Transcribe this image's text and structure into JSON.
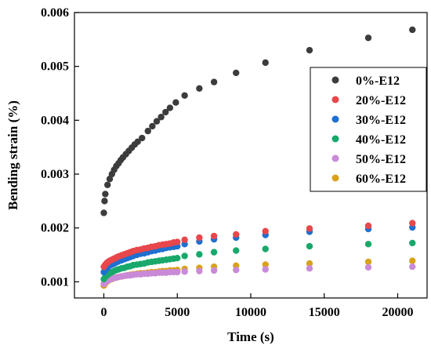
{
  "chart_data": {
    "type": "scatter",
    "xlabel": "Time (s)",
    "ylabel": "Bending strain (%)",
    "xlim": [
      -2000,
      22000
    ],
    "ylim": [
      0.0007,
      0.006
    ],
    "x_ticks": [
      0,
      5000,
      10000,
      15000,
      20000
    ],
    "y_ticks": [
      0.001,
      0.002,
      0.003,
      0.004,
      0.005,
      0.006
    ],
    "x_tick_labels": [
      "0",
      "5000",
      "10000",
      "15000",
      "20000"
    ],
    "y_tick_labels": [
      "0.001",
      "0.002",
      "0.003",
      "0.004",
      "0.005",
      "0.006"
    ],
    "grid": false,
    "legend_position": "right",
    "series": [
      {
        "name": "0%-E12",
        "color": "#3c3c3c",
        "x": [
          0,
          50,
          100,
          250,
          400,
          550,
          700,
          850,
          1000,
          1150,
          1300,
          1500,
          1700,
          1900,
          2100,
          2300,
          2600,
          3000,
          3300,
          3600,
          3900,
          4200,
          4500,
          4900,
          5500,
          6500,
          7500,
          9000,
          11000,
          14000,
          18000,
          21000
        ],
        "y": [
          0.00228,
          0.0025,
          0.00263,
          0.0028,
          0.00291,
          0.003,
          0.00308,
          0.00315,
          0.0032,
          0.00326,
          0.00331,
          0.00337,
          0.00343,
          0.00349,
          0.00355,
          0.0036,
          0.00367,
          0.0038,
          0.00389,
          0.00398,
          0.00406,
          0.00415,
          0.00423,
          0.00433,
          0.00446,
          0.00459,
          0.00471,
          0.00488,
          0.00507,
          0.0053,
          0.00553,
          0.00568
        ]
      },
      {
        "name": "20%-E12",
        "color": "#e8474b",
        "x": [
          0,
          100,
          200,
          300,
          400,
          550,
          700,
          850,
          1000,
          1200,
          1400,
          1600,
          1800,
          2000,
          2250,
          2500,
          2750,
          3000,
          3250,
          3500,
          3750,
          4000,
          4250,
          4500,
          4750,
          5000,
          5500,
          6500,
          7500,
          9000,
          11000,
          14000,
          18000,
          21000
        ],
        "y": [
          0.00128,
          0.00132,
          0.00135,
          0.00137,
          0.00139,
          0.00141,
          0.00143,
          0.00145,
          0.00147,
          0.00149,
          0.00151,
          0.00153,
          0.00155,
          0.00157,
          0.00159,
          0.0016,
          0.00162,
          0.00163,
          0.00165,
          0.00166,
          0.00168,
          0.00169,
          0.0017,
          0.00171,
          0.00173,
          0.00174,
          0.00178,
          0.00182,
          0.00185,
          0.00188,
          0.00194,
          0.00199,
          0.00204,
          0.00209
        ]
      },
      {
        "name": "30%-E12",
        "color": "#1f6fd0",
        "x": [
          0,
          100,
          200,
          300,
          400,
          550,
          700,
          850,
          1000,
          1200,
          1400,
          1600,
          1800,
          2000,
          2250,
          2500,
          2750,
          3000,
          3250,
          3500,
          3750,
          4000,
          4250,
          4500,
          4750,
          5000,
          5500,
          6500,
          7500,
          9000,
          11000,
          14000,
          18000,
          21000
        ],
        "y": [
          0.00118,
          0.00122,
          0.00125,
          0.00128,
          0.0013,
          0.00132,
          0.00134,
          0.00136,
          0.00138,
          0.0014,
          0.00142,
          0.00144,
          0.00146,
          0.00148,
          0.0015,
          0.00152,
          0.00153,
          0.00155,
          0.00157,
          0.00158,
          0.0016,
          0.00161,
          0.00163,
          0.00164,
          0.00165,
          0.00166,
          0.0017,
          0.00175,
          0.00179,
          0.00182,
          0.00187,
          0.00193,
          0.00198,
          0.00201
        ]
      },
      {
        "name": "40%-E12",
        "color": "#19a86b",
        "x": [
          0,
          100,
          200,
          300,
          400,
          550,
          700,
          850,
          1000,
          1200,
          1400,
          1600,
          1800,
          2000,
          2250,
          2500,
          2750,
          3000,
          3250,
          3500,
          3750,
          4000,
          4250,
          4500,
          4750,
          5000,
          5500,
          6500,
          7500,
          9000,
          11000,
          14000,
          18000,
          21000
        ],
        "y": [
          0.00105,
          0.00109,
          0.00112,
          0.00114,
          0.00116,
          0.00118,
          0.0012,
          0.00122,
          0.00123,
          0.00125,
          0.00126,
          0.00128,
          0.00129,
          0.00131,
          0.00132,
          0.00133,
          0.00134,
          0.00136,
          0.00137,
          0.00138,
          0.00139,
          0.0014,
          0.00141,
          0.00142,
          0.00143,
          0.00144,
          0.00148,
          0.00151,
          0.00155,
          0.00158,
          0.00161,
          0.00166,
          0.0017,
          0.00172
        ]
      },
      {
        "name": "50%-E12",
        "color": "#c98ad8",
        "x": [
          0,
          100,
          200,
          300,
          400,
          550,
          700,
          850,
          1000,
          1200,
          1400,
          1600,
          1800,
          2000,
          2250,
          2500,
          2750,
          3000,
          3250,
          3500,
          3750,
          4000,
          4250,
          4500,
          4750,
          5000,
          5500,
          6500,
          7500,
          9000,
          11000,
          14000,
          18000,
          21000
        ],
        "y": [
          0.00096,
          0.00099,
          0.00101,
          0.00103,
          0.00104,
          0.00106,
          0.00107,
          0.00108,
          0.00109,
          0.0011,
          0.00111,
          0.00112,
          0.00112,
          0.00113,
          0.00114,
          0.00114,
          0.00115,
          0.00115,
          0.00116,
          0.00116,
          0.00117,
          0.00117,
          0.00117,
          0.00118,
          0.00118,
          0.00118,
          0.00119,
          0.0012,
          0.00121,
          0.00122,
          0.00123,
          0.00125,
          0.00127,
          0.00128
        ]
      },
      {
        "name": "60%-E12",
        "color": "#d9a21b",
        "x": [
          0,
          100,
          200,
          300,
          400,
          550,
          700,
          850,
          1000,
          1200,
          1400,
          1600,
          1800,
          2000,
          2250,
          2500,
          2750,
          3000,
          3250,
          3500,
          3750,
          4000,
          4250,
          4500,
          4750,
          5000,
          5500,
          6500,
          7500,
          9000,
          11000,
          14000,
          18000,
          21000
        ],
        "y": [
          0.00093,
          0.00097,
          0.001,
          0.00102,
          0.00104,
          0.00105,
          0.00107,
          0.00108,
          0.00109,
          0.0011,
          0.00111,
          0.00112,
          0.00113,
          0.00114,
          0.00115,
          0.00116,
          0.00116,
          0.00117,
          0.00118,
          0.00118,
          0.00119,
          0.0012,
          0.0012,
          0.00121,
          0.00121,
          0.00122,
          0.00124,
          0.00126,
          0.00128,
          0.0013,
          0.00132,
          0.00134,
          0.00137,
          0.00139
        ]
      }
    ]
  }
}
